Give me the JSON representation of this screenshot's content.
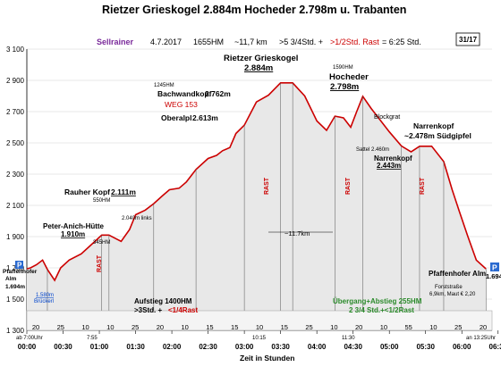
{
  "chart_data": {
    "type": "area",
    "header": {
      "line1": "Rietzer Grieskogel 2.884m  Hocheder 2.798m  u. Trabanten",
      "region": "Sellrainer",
      "date": "4.7.2017",
      "ascent": "1655HM",
      "distance": "~11,7 km",
      "time": ">5 3/4Std. +",
      "rest": ">1/2Std. Rast",
      "total": "= 6:25 Std.",
      "page": "31/17"
    },
    "xlabel": "Zeit in Stunden",
    "ylim": [
      1300,
      3100
    ],
    "xlim": [
      0,
      745
    ],
    "y_ticks": [
      1300,
      1500,
      1700,
      1900,
      2100,
      2300,
      2500,
      2700,
      2900,
      3100
    ],
    "y_tick_labels": [
      "1 300",
      "1 500",
      "1 700",
      "1 900",
      "2 100",
      "2 300",
      "2 500",
      "2 700",
      "2 900",
      "3 100"
    ],
    "x_ticks": [
      0,
      30,
      60,
      90,
      120,
      150,
      180,
      210,
      240,
      270,
      300,
      330,
      360,
      390
    ],
    "x_tick_labels": [
      "00:00",
      "00:30",
      "01:00",
      "01:30",
      "02:00",
      "02:30",
      "03:00",
      "03:30",
      "04:00",
      "04:30",
      "05:00",
      "05:30",
      "06:00",
      "06:30"
    ],
    "profile": {
      "x": [
        0,
        3,
        8,
        13,
        17,
        23,
        28,
        35,
        45,
        55,
        62,
        68,
        78,
        85,
        90,
        98,
        105,
        112,
        118,
        126,
        132,
        140,
        150,
        157,
        162,
        168,
        173,
        180,
        190,
        200,
        210,
        220,
        230,
        240,
        248,
        255,
        262,
        268,
        273,
        278,
        285,
        300,
        310,
        318,
        325,
        335,
        345,
        352,
        358,
        365,
        372,
        380
      ],
      "y": [
        1694,
        1700,
        1720,
        1750,
        1690,
        1620,
        1700,
        1750,
        1790,
        1860,
        1910,
        1910,
        1870,
        1945,
        2040,
        2070,
        2111,
        2160,
        2200,
        2210,
        2250,
        2330,
        2400,
        2420,
        2450,
        2470,
        2560,
        2613,
        2762,
        2805,
        2884,
        2884,
        2800,
        2640,
        2580,
        2671,
        2660,
        2600,
        2700,
        2798,
        2720,
        2570,
        2480,
        2443,
        2478,
        2478,
        2380,
        2200,
        2060,
        1900,
        1750,
        1694
      ]
    },
    "peaks": [
      {
        "name": "Rietzer Grieskogel",
        "elev": "2.884m"
      },
      {
        "name": "Hocheder",
        "elev": "2.798m"
      },
      {
        "name": "Bachwandkopf",
        "elev": "2.762m"
      },
      {
        "name": "Oberalpl",
        "elev": "2.613m"
      },
      {
        "name": "Rauher Kopf",
        "elev": "2.111m"
      },
      {
        "name": "Peter-Anich-Hütte",
        "elev": "1.910m"
      },
      {
        "name": "Narrenkopf",
        "elev": "~2.478m Südgipfel"
      },
      {
        "name": "Narrenkopf",
        "elev": "2.443m"
      },
      {
        "name": "Pfaffenhofer Alm",
        "elev": "1.694m"
      }
    ],
    "annotations": {
      "weg": "WEG 153",
      "hm_1245": "1245HM",
      "hm_1590": "1590HM",
      "hm_550": "550HM",
      "hm_345": "345HM",
      "links": "2.040m links",
      "sattel": "Sattel 2.460m",
      "blockgrat": "Blockgrat",
      "rast": "RAST",
      "dist": "~11.7km",
      "aufstieg1": "Aufstieg 1400HM",
      "aufstieg2": ">3Std. +",
      "aufstieg3": "<1/4Rast",
      "uebergang1": "Übergang+Abstieg 255HM",
      "uebergang2": "2 3/4 Std.+<1/2Rast",
      "start_time": "ab 7:00Uhr",
      "end_time": "an 13:25Uhr",
      "t_755": "7:55",
      "t_1015": "10:15",
      "t_1130": "11:30",
      "pfaffen_alm": "Pfaffenhofer Alm",
      "pfaffen_start_1": "Pfaffenhofer",
      "pfaffen_start_2": "Alm",
      "start_elev": "1.694m",
      "bruecke_elev": "1.580m",
      "bruecke": "Brückerl",
      "p_left": "P",
      "p_right": "P",
      "forst1": "Forststraße",
      "forst2": "6,9km, Maut € 2,20"
    },
    "segment_minutes": [
      "20",
      "25",
      "10",
      "10",
      "25",
      "20",
      "10",
      "15",
      "15",
      "10",
      "15",
      "25",
      "10",
      "20",
      "10",
      "55",
      "10",
      "25",
      "20"
    ]
  }
}
